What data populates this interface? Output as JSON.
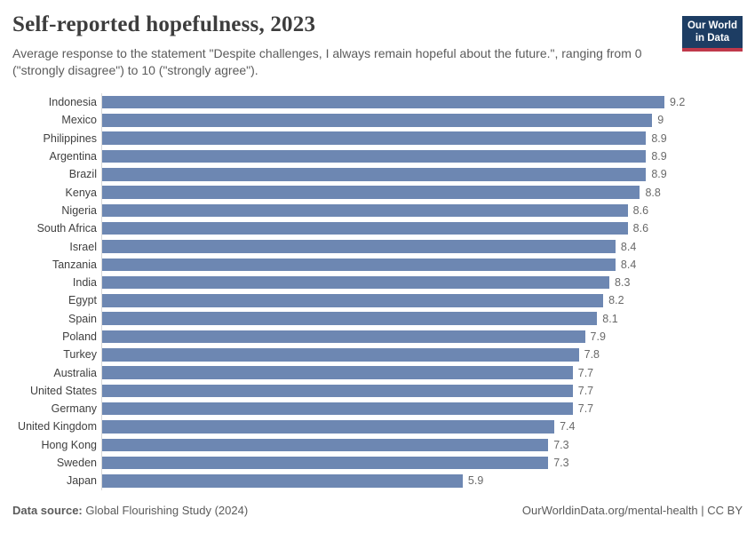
{
  "header": {
    "title": "Self-reported hopefulness, 2023",
    "subtitle": "Average response to the statement \"Despite challenges, I always remain hopeful about the future.\", ranging from 0 (\"strongly disagree\") to 10 (\"strongly agree\").",
    "logo": {
      "line1": "Our World",
      "line2": "in Data",
      "bg_color": "#1d3d63",
      "stripe_color": "#c0394b"
    }
  },
  "chart_data": {
    "type": "bar",
    "orientation": "horizontal",
    "title": "Self-reported hopefulness, 2023",
    "categories": [
      "Indonesia",
      "Mexico",
      "Philippines",
      "Argentina",
      "Brazil",
      "Kenya",
      "Nigeria",
      "South Africa",
      "Israel",
      "Tanzania",
      "India",
      "Egypt",
      "Spain",
      "Poland",
      "Turkey",
      "Australia",
      "United States",
      "Germany",
      "United Kingdom",
      "Hong Kong",
      "Sweden",
      "Japan"
    ],
    "values": [
      9.2,
      9,
      8.9,
      8.9,
      8.9,
      8.8,
      8.6,
      8.6,
      8.4,
      8.4,
      8.3,
      8.2,
      8.1,
      7.9,
      7.8,
      7.7,
      7.7,
      7.7,
      7.4,
      7.3,
      7.3,
      5.9
    ],
    "value_labels": [
      "9.2",
      "9",
      "8.9",
      "8.9",
      "8.9",
      "8.8",
      "8.6",
      "8.6",
      "8.4",
      "8.4",
      "8.3",
      "8.2",
      "8.1",
      "7.9",
      "7.8",
      "7.7",
      "7.7",
      "7.7",
      "7.4",
      "7.3",
      "7.3",
      "5.9"
    ],
    "xlim": [
      0,
      9.2
    ],
    "bar_color": "#6d87b2",
    "axis_line_color": "#d9d9d9",
    "grid": false,
    "legend": false,
    "xlabel": "",
    "ylabel": ""
  },
  "footer": {
    "data_source_label": "Data source:",
    "data_source_value": " Global Flourishing Study (2024)",
    "attribution": "OurWorldinData.org/mental-health | CC BY"
  }
}
